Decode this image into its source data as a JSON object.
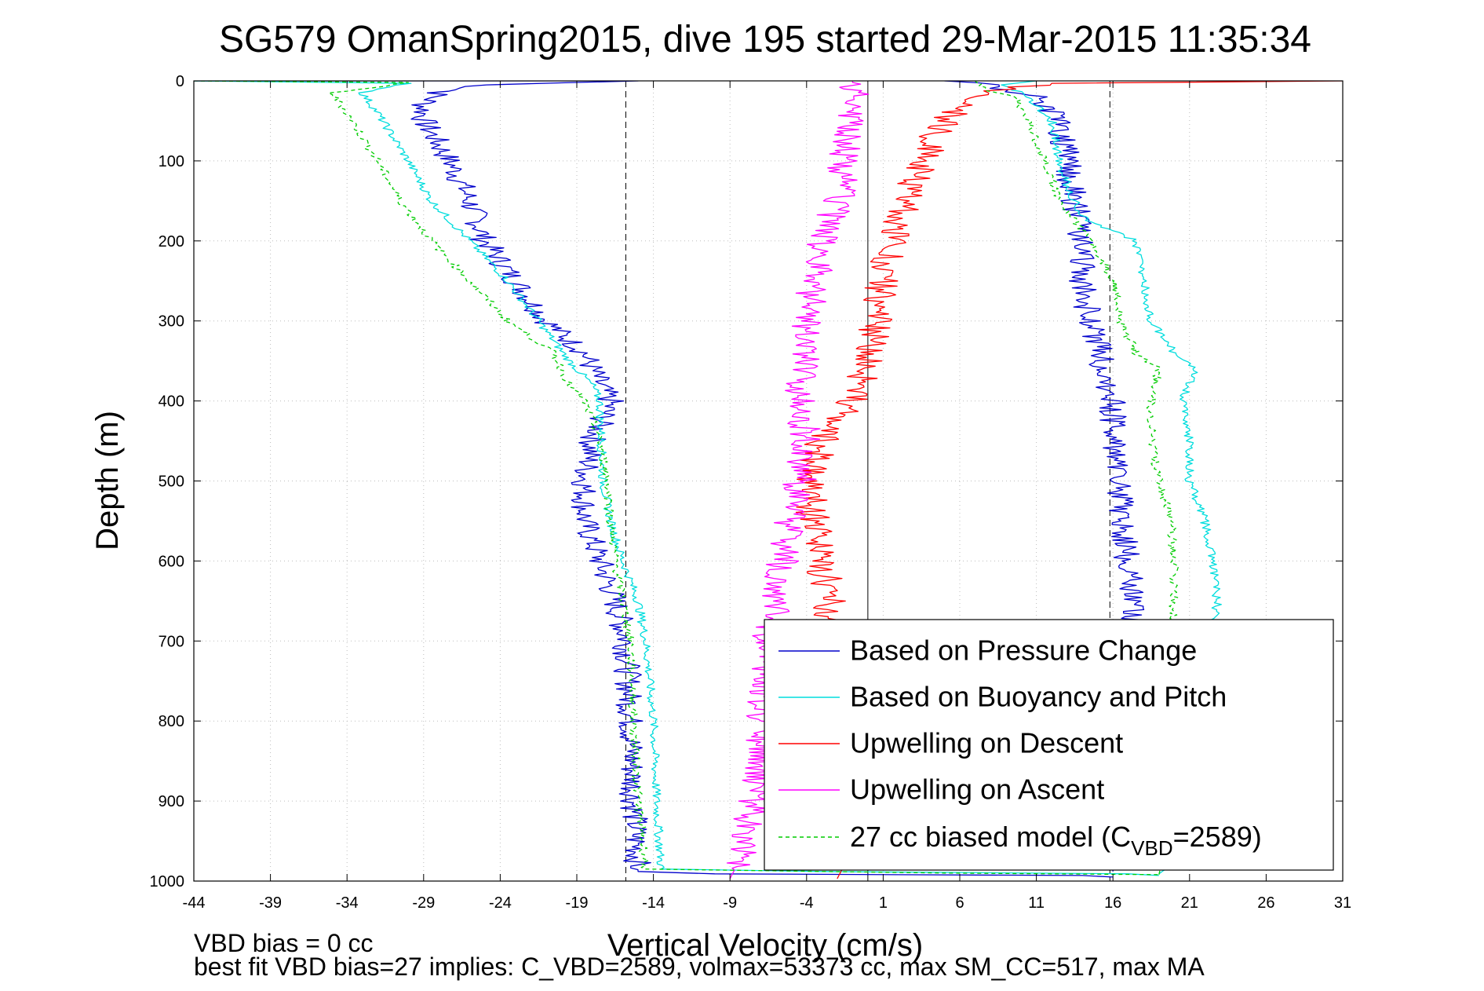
{
  "chart_data": {
    "type": "line",
    "title": "SG579 OmanSpring2015, dive 195 started 29-Mar-2015 11:35:34",
    "xlabel": "Vertical Velocity (cm/s)",
    "ylabel": "Depth (m)",
    "xlim": [
      -44,
      31
    ],
    "ylim": [
      0,
      1000
    ],
    "y_reversed": true,
    "grid": true,
    "xticks": [
      -44,
      -39,
      -34,
      -29,
      -24,
      -19,
      -14,
      -9,
      -4,
      1,
      6,
      11,
      16,
      21,
      26,
      31
    ],
    "yticks": [
      0,
      100,
      200,
      300,
      400,
      500,
      600,
      700,
      800,
      900,
      1000
    ],
    "xtick_labels": [
      "-44",
      "-39",
      "-34",
      "-29",
      "-24",
      "-19",
      "-14",
      "-9",
      "-4",
      "1",
      "6",
      "11",
      "16",
      "21",
      "26",
      "31"
    ],
    "ytick_labels": [
      "0",
      "100",
      "200",
      "300",
      "400",
      "500",
      "600",
      "700",
      "800",
      "900",
      "1000"
    ],
    "reference_lines": {
      "zero_x": 0,
      "dashed_x": [
        -15.8,
        15.8
      ]
    },
    "legend_position": "bottom-right",
    "legend_entries": [
      "Based on Pressure Change",
      "Based on Buoyancy and Pitch",
      "Upwelling on Descent",
      "Upwelling on Ascent"
    ],
    "legend_model": {
      "prefix": "27 cc biased model (C",
      "sub": "VBD",
      "suffix": "=2589)"
    },
    "series": [
      {
        "color": "#0000cc",
        "dash": false,
        "noise": 0.9,
        "segments": [
          [
            [
              -44,
              0
            ],
            [
              -15,
              0
            ],
            [
              -25,
              5
            ],
            [
              -28,
              15
            ],
            [
              -29,
              30
            ],
            [
              -29,
              50
            ],
            [
              -28,
              80
            ],
            [
              -27,
              110
            ],
            [
              -26,
              150
            ],
            [
              -25,
              200
            ],
            [
              -23,
              250
            ],
            [
              -21,
              300
            ],
            [
              -18.5,
              340
            ],
            [
              -17.5,
              380
            ],
            [
              -16.8,
              400
            ],
            [
              -18,
              450
            ],
            [
              -18.5,
              500
            ],
            [
              -18.5,
              550
            ],
            [
              -17.5,
              600
            ],
            [
              -16.5,
              650
            ],
            [
              -15.8,
              700
            ],
            [
              -15.5,
              800
            ],
            [
              -15.3,
              900
            ],
            [
              -15,
              988
            ],
            [
              -10,
              991
            ],
            [
              14,
              993
            ],
            [
              16,
              995
            ]
          ],
          [
            [
              16,
              988
            ],
            [
              15.8,
              950
            ],
            [
              15.8,
              900
            ],
            [
              16,
              850
            ],
            [
              16.3,
              800
            ],
            [
              16.5,
              750
            ],
            [
              17,
              700
            ],
            [
              17.5,
              650
            ],
            [
              17,
              600
            ],
            [
              16.5,
              550
            ],
            [
              16.5,
              500
            ],
            [
              16,
              450
            ],
            [
              16,
              400
            ],
            [
              15.5,
              370
            ],
            [
              15,
              330
            ],
            [
              14.5,
              300
            ],
            [
              14,
              250
            ],
            [
              14,
              200
            ],
            [
              13.5,
              150
            ],
            [
              13,
              100
            ],
            [
              12.5,
              50
            ],
            [
              11,
              20
            ],
            [
              8,
              5
            ],
            [
              5,
              0
            ]
          ]
        ]
      },
      {
        "color": "#00dddd",
        "dash": false,
        "noise": 0.3,
        "segments": [
          [
            [
              -44,
              0
            ],
            [
              -30,
              3
            ],
            [
              -33,
              15
            ],
            [
              -32,
              40
            ],
            [
              -31,
              70
            ],
            [
              -30,
              100
            ],
            [
              -28.5,
              150
            ],
            [
              -26,
              200
            ],
            [
              -23.5,
              250
            ],
            [
              -21.5,
              300
            ],
            [
              -19.5,
              350
            ],
            [
              -18,
              380
            ],
            [
              -17.5,
              400
            ],
            [
              -17.3,
              500
            ],
            [
              -16.8,
              550
            ],
            [
              -16,
              600
            ],
            [
              -15,
              650
            ],
            [
              -14.5,
              700
            ],
            [
              -14,
              800
            ],
            [
              -13.8,
              900
            ],
            [
              -13.5,
              985
            ],
            [
              -3,
              988
            ],
            [
              17,
              991
            ],
            [
              19,
              993
            ]
          ],
          [
            [
              19,
              991
            ],
            [
              22,
              950
            ],
            [
              22,
              900
            ],
            [
              22.3,
              800
            ],
            [
              22.5,
              750
            ],
            [
              22.5,
              700
            ],
            [
              22.8,
              650
            ],
            [
              22.5,
              600
            ],
            [
              22,
              550
            ],
            [
              21,
              500
            ],
            [
              21,
              450
            ],
            [
              20.5,
              400
            ],
            [
              21.5,
              360
            ],
            [
              20,
              340
            ],
            [
              18.5,
              300
            ],
            [
              18,
              250
            ],
            [
              17.5,
              200
            ],
            [
              14,
              170
            ],
            [
              13,
              130
            ],
            [
              12.5,
              100
            ],
            [
              12,
              50
            ],
            [
              10.5,
              20
            ],
            [
              9,
              5
            ],
            [
              11,
              0
            ]
          ]
        ]
      },
      {
        "color": "#ff0000",
        "dash": false,
        "noise": 1.1,
        "segments": [
          [
            [
              -2,
              997
            ],
            [
              -1,
              960
            ],
            [
              -1.5,
              900
            ],
            [
              -2,
              850
            ],
            [
              -2.3,
              800
            ],
            [
              -2.5,
              750
            ],
            [
              -3,
              700
            ],
            [
              -2.5,
              650
            ],
            [
              -3,
              600
            ],
            [
              -3.5,
              550
            ],
            [
              -4,
              500
            ],
            [
              -3,
              450
            ],
            [
              -1,
              400
            ],
            [
              0,
              350
            ],
            [
              0.5,
              300
            ],
            [
              1,
              250
            ],
            [
              1.5,
              200
            ],
            [
              2.5,
              150
            ],
            [
              3.5,
              100
            ],
            [
              5,
              50
            ],
            [
              7,
              15
            ],
            [
              12,
              3
            ],
            [
              31,
              0
            ]
          ]
        ]
      },
      {
        "color": "#ff00ff",
        "dash": false,
        "noise": 1.1,
        "segments": [
          [
            [
              -9,
              997
            ],
            [
              -8,
              960
            ],
            [
              -7.5,
              900
            ],
            [
              -7,
              850
            ],
            [
              -7,
              800
            ],
            [
              -6.5,
              750
            ],
            [
              -6.5,
              700
            ],
            [
              -6,
              650
            ],
            [
              -5.5,
              600
            ],
            [
              -5,
              550
            ],
            [
              -4.5,
              500
            ],
            [
              -4,
              450
            ],
            [
              -4.5,
              400
            ],
            [
              -4,
              350
            ],
            [
              -4,
              300
            ],
            [
              -3.5,
              250
            ],
            [
              -3,
              200
            ],
            [
              -2,
              150
            ],
            [
              -1.5,
              100
            ],
            [
              -1,
              50
            ],
            [
              -1,
              10
            ],
            [
              -1,
              0
            ]
          ]
        ]
      },
      {
        "color": "#00cc00",
        "dash": true,
        "noise": 0.3,
        "segments": [
          [
            [
              -44,
              0
            ],
            [
              -30,
              2
            ],
            [
              -35,
              15
            ],
            [
              -34,
              40
            ],
            [
              -33,
              70
            ],
            [
              -32,
              100
            ],
            [
              -30.5,
              150
            ],
            [
              -28.5,
              200
            ],
            [
              -26,
              250
            ],
            [
              -23.5,
              300
            ],
            [
              -20.5,
              340
            ],
            [
              -19.5,
              380
            ],
            [
              -18.5,
              400
            ],
            [
              -17.5,
              450
            ],
            [
              -17,
              500
            ],
            [
              -16.8,
              550
            ],
            [
              -16.5,
              600
            ],
            [
              -16,
              650
            ],
            [
              -15.5,
              700
            ],
            [
              -15.3,
              800
            ],
            [
              -15,
              900
            ],
            [
              -14.5,
              985
            ],
            [
              5,
              990
            ],
            [
              19,
              992
            ]
          ],
          [
            [
              19,
              992
            ],
            [
              19.5,
              950
            ],
            [
              19.5,
              900
            ],
            [
              19.8,
              800
            ],
            [
              19.8,
              700
            ],
            [
              20,
              650
            ],
            [
              20,
              600
            ],
            [
              19.8,
              550
            ],
            [
              19,
              500
            ],
            [
              18.5,
              450
            ],
            [
              18.5,
              400
            ],
            [
              19,
              360
            ],
            [
              17.5,
              340
            ],
            [
              16.5,
              300
            ],
            [
              16,
              250
            ],
            [
              14.5,
              200
            ],
            [
              12.5,
              150
            ],
            [
              11.5,
              100
            ],
            [
              10.5,
              50
            ],
            [
              9.5,
              20
            ],
            [
              7.5,
              10
            ],
            [
              7,
              0
            ]
          ]
        ]
      }
    ]
  },
  "footer": {
    "vbd_bias": "VBD bias = 0 cc",
    "fit_text": "best fit VBD bias=27 implies: C_VBD=2589, volmax=53373 cc, max SM_CC=517, max MA"
  }
}
